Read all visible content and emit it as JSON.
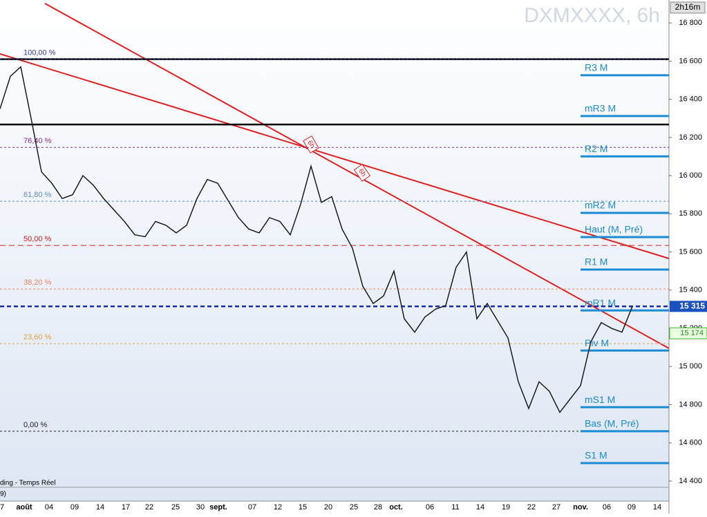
{
  "chart_data": {
    "type": "line",
    "title": "DXMXXXX, 6h",
    "timer": "2h16m",
    "series": [
      {
        "name": "DXMXXXX",
        "color": "#1a1a1a",
        "values": [
          16350,
          16520,
          16570,
          16300,
          16020,
          15960,
          15880,
          15900,
          16000,
          15950,
          15880,
          15820,
          15760,
          15690,
          15680,
          15760,
          15740,
          15700,
          15740,
          15880,
          15980,
          15960,
          15870,
          15780,
          15720,
          15700,
          15780,
          15760,
          15690,
          15850,
          16050,
          15860,
          15890,
          15720,
          15620,
          15420,
          15330,
          15370,
          15500,
          15250,
          15180,
          15260,
          15300,
          15320,
          15520,
          15600,
          15250,
          15330,
          15240,
          15150,
          14920,
          14780,
          14920,
          14870,
          14760,
          14830,
          14900,
          15130,
          15230,
          15200,
          15180,
          15315
        ]
      }
    ],
    "ylim": [
      14295,
      16920
    ],
    "yticks": [
      {
        "value": 14400,
        "label": "14 400"
      },
      {
        "value": 14600,
        "label": "14 600"
      },
      {
        "value": 14800,
        "label": "14 800"
      },
      {
        "value": 15000,
        "label": "15 000"
      },
      {
        "value": 15200,
        "label": "15 200"
      },
      {
        "value": 15400,
        "label": "15 400"
      },
      {
        "value": 15600,
        "label": "15 600"
      },
      {
        "value": 15800,
        "label": "15 800"
      },
      {
        "value": 16000,
        "label": "16 000"
      },
      {
        "value": 16200,
        "label": "16 200"
      },
      {
        "value": 16400,
        "label": "16 400"
      },
      {
        "value": 16600,
        "label": "16 600"
      },
      {
        "value": 16800,
        "label": "16 800"
      }
    ],
    "xticks": [
      "7",
      "août",
      "04",
      "09",
      "14",
      "17",
      "22",
      "25",
      "30",
      "sept.",
      "07",
      "12",
      "15",
      "20",
      "25",
      "28",
      "oct.",
      "06",
      "11",
      "14",
      "19",
      "22",
      "27",
      "nov.",
      "06",
      "09",
      "14"
    ],
    "fibonacci": [
      {
        "label": "100,00 %",
        "value": 16610,
        "color": "#3a3aa0"
      },
      {
        "label": "76,40 %",
        "value": 16148,
        "color": "#8a2a9a"
      },
      {
        "label": "61,80 %",
        "value": 15866,
        "color": "#5a8ac0"
      },
      {
        "label": "50,00 %",
        "value": 15634,
        "color": "#d02020"
      },
      {
        "label": "38,20 %",
        "value": 15406,
        "color": "#f08060"
      },
      {
        "label": "23,60 %",
        "value": 15120,
        "color": "#e0a040"
      },
      {
        "label": "0,00 %",
        "value": 14661,
        "color": "#202020"
      }
    ],
    "pivots": [
      {
        "label": "R3 M",
        "value": 16526
      },
      {
        "label": "mR3 M",
        "value": 16312
      },
      {
        "label": "R2 M",
        "value": 16101
      },
      {
        "label": "mR2 M",
        "value": 15805
      },
      {
        "label": "Haut (M, Pré)",
        "value": 15678
      },
      {
        "label": "R1 M",
        "value": 15508
      },
      {
        "label": "mR1 M",
        "value": 15294
      },
      {
        "label": "Piv M",
        "value": 15084
      },
      {
        "label": "mS1 M",
        "value": 14787
      },
      {
        "label": "Bas (M, Pré)",
        "value": 14661
      },
      {
        "label": "S1 M",
        "value": 14494
      }
    ],
    "support_lines": [
      16610,
      16268
    ],
    "last_price": {
      "value": 15315,
      "label": "15 315"
    },
    "average_last": {
      "value": 15174,
      "label": "15 174"
    },
    "trend_labels": [
      "6h",
      "6h"
    ],
    "footer": "ding - Temps Réel",
    "footer2": "9)"
  }
}
